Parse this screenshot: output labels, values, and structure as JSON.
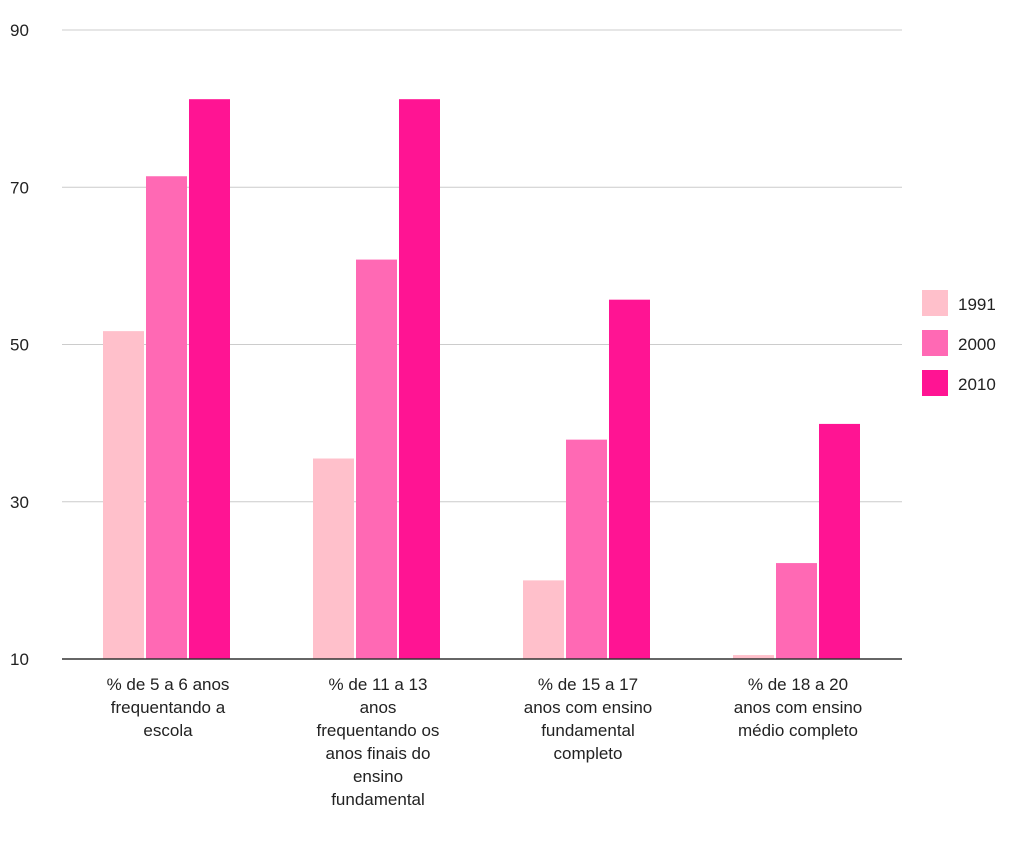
{
  "chart_data": {
    "type": "bar",
    "title": "",
    "xlabel": "",
    "ylabel": "",
    "ylim": [
      10,
      90
    ],
    "yticks": [
      10,
      30,
      50,
      70,
      90
    ],
    "grid": true,
    "legend_position": "right",
    "categories": [
      [
        "% de 5 a 6 anos",
        "frequentando a",
        "escola"
      ],
      [
        "% de 11 a 13",
        "anos",
        "frequentando os",
        "anos finais do",
        "ensino",
        "fundamental"
      ],
      [
        "% de 15 a 17",
        "anos com ensino",
        "fundamental",
        "completo"
      ],
      [
        "% de 18 a 20",
        "anos com ensino",
        "médio completo"
      ]
    ],
    "series": [
      {
        "name": "1991",
        "color": "#ffc0cb",
        "values": [
          51.7,
          35.5,
          20.0,
          10.5
        ]
      },
      {
        "name": "2000",
        "color": "#ff69b4",
        "values": [
          71.4,
          60.8,
          37.9,
          22.2
        ]
      },
      {
        "name": "2010",
        "color": "#ff1493",
        "values": [
          81.2,
          81.2,
          55.7,
          39.9
        ]
      }
    ]
  }
}
